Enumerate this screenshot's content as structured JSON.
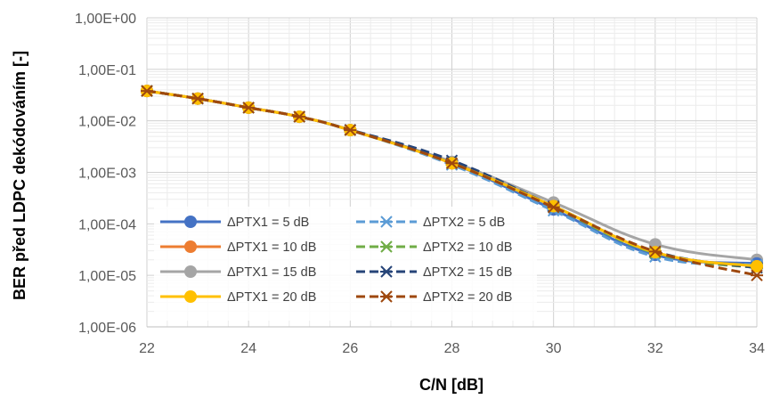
{
  "chart_data": {
    "type": "line",
    "xlabel": "C/N [dB]",
    "ylabel": "BER před LDPC dekódováním [-]",
    "y_scale": "log",
    "xlim": [
      22,
      34
    ],
    "x_ticks": [
      "22",
      "24",
      "26",
      "28",
      "30",
      "32",
      "34"
    ],
    "x_tick_values": [
      22,
      24,
      26,
      28,
      30,
      32,
      34
    ],
    "ylim": [
      1e-06,
      1
    ],
    "y_ticks": [
      "1,00E+00",
      "1,00E-01",
      "1,00E-02",
      "1,00E-03",
      "1,00E-04",
      "1,00E-05",
      "1,00E-06"
    ],
    "y_tick_values": [
      1,
      0.1,
      0.01,
      0.001,
      0.0001,
      1e-05,
      1e-06
    ],
    "grid": "major and minor",
    "legend_position": "bottom-left inside plot",
    "series": [
      {
        "name": "ΔPTX1 = 5 dB",
        "color": "#4472C4",
        "style": "solid",
        "marker": "circle",
        "x": [
          22,
          23,
          24,
          25,
          26,
          28,
          30,
          32,
          34
        ],
        "y": [
          0.038,
          0.027,
          0.018,
          0.012,
          0.0066,
          0.0015,
          0.00019,
          2.5e-05,
          1.7e-05
        ]
      },
      {
        "name": "ΔPTX1 = 10 dB",
        "color": "#ED7D31",
        "style": "solid",
        "marker": "circle",
        "x": [
          22,
          23,
          24,
          25,
          26,
          28,
          30,
          32,
          34
        ],
        "y": [
          0.038,
          0.027,
          0.018,
          0.012,
          0.0066,
          0.0015,
          0.00022,
          2.8e-05,
          1.5e-05
        ]
      },
      {
        "name": "ΔPTX1 = 15 dB",
        "color": "#A5A5A5",
        "style": "solid",
        "marker": "circle",
        "x": [
          22,
          23,
          24,
          25,
          26,
          28,
          30,
          32,
          34
        ],
        "y": [
          0.038,
          0.027,
          0.018,
          0.012,
          0.0066,
          0.0016,
          0.00026,
          4e-05,
          2e-05
        ]
      },
      {
        "name": "ΔPTX1 = 20 dB",
        "color": "#FFC000",
        "style": "solid",
        "marker": "circle",
        "x": [
          22,
          23,
          24,
          25,
          26,
          28,
          30,
          32,
          34
        ],
        "y": [
          0.038,
          0.027,
          0.018,
          0.012,
          0.0066,
          0.0015,
          0.00022,
          2.8e-05,
          1.5e-05
        ]
      },
      {
        "name": "ΔPTX2 = 5 dB",
        "color": "#5B9BD5",
        "style": "dashed",
        "marker": "star",
        "x": [
          22,
          23,
          24,
          25,
          26,
          28,
          30,
          32,
          34
        ],
        "y": [
          0.038,
          0.027,
          0.018,
          0.012,
          0.0066,
          0.0014,
          0.00018,
          2.3e-05,
          1.6e-05
        ]
      },
      {
        "name": "ΔPTX2 = 10 dB",
        "color": "#70AD47",
        "style": "dashed",
        "marker": "star",
        "x": [
          22,
          23,
          24,
          25,
          26,
          28,
          30,
          32,
          34
        ],
        "y": [
          0.038,
          0.027,
          0.018,
          0.012,
          0.0066,
          0.0015,
          0.00021,
          2.7e-05,
          1.4e-05
        ]
      },
      {
        "name": "ΔPTX2 = 15 dB",
        "color": "#264478",
        "style": "dashed",
        "marker": "star",
        "x": [
          22,
          23,
          24,
          25,
          26,
          28,
          30,
          32,
          34
        ],
        "y": [
          0.038,
          0.027,
          0.018,
          0.012,
          0.0067,
          0.0017,
          0.00022,
          2.9e-05,
          1.4e-05
        ]
      },
      {
        "name": "ΔPTX2 = 20 dB",
        "color": "#9E480E",
        "style": "dashed",
        "marker": "star",
        "x": [
          22,
          23,
          24,
          25,
          26,
          28,
          30,
          32,
          34
        ],
        "y": [
          0.038,
          0.027,
          0.018,
          0.012,
          0.0066,
          0.0015,
          0.00021,
          2.9e-05,
          1e-05
        ]
      }
    ]
  }
}
